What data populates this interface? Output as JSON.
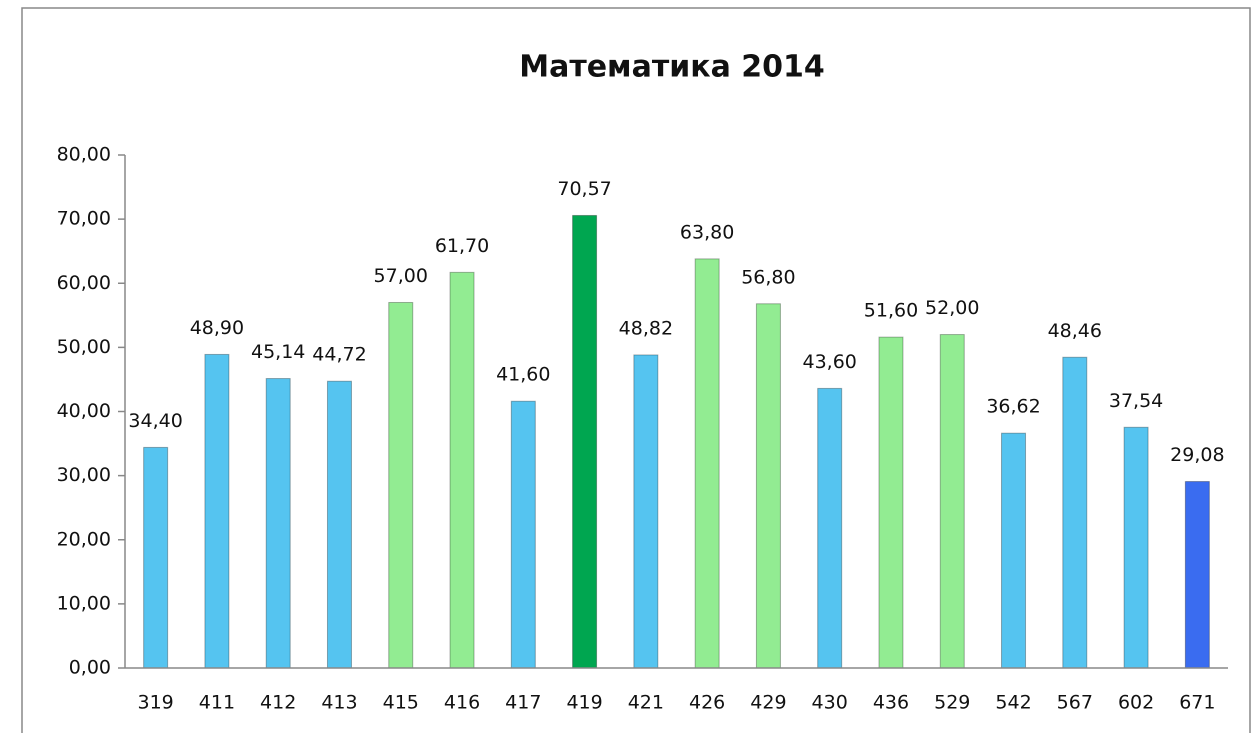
{
  "chart_data": {
    "type": "bar",
    "title": "Математика 2014",
    "categories": [
      "319",
      "411",
      "412",
      "413",
      "415",
      "416",
      "417",
      "419",
      "421",
      "426",
      "429",
      "430",
      "436",
      "529",
      "542",
      "567",
      "602",
      "671"
    ],
    "values": [
      34.4,
      48.9,
      45.14,
      44.72,
      57.0,
      61.7,
      41.6,
      70.57,
      48.82,
      63.8,
      56.8,
      43.6,
      51.6,
      52.0,
      36.62,
      48.46,
      37.54,
      29.08
    ],
    "value_labels": [
      "34,40",
      "48,90",
      "45,14",
      "44,72",
      "57,00",
      "61,70",
      "41,60",
      "70,57",
      "48,82",
      "63,80",
      "56,80",
      "43,60",
      "51,60",
      "52,00",
      "36,62",
      "48,46",
      "37,54",
      "29,08"
    ],
    "colors": [
      "#55c4f0",
      "#55c4f0",
      "#55c4f0",
      "#55c4f0",
      "#92ec92",
      "#92ec92",
      "#55c4f0",
      "#00a650",
      "#55c4f0",
      "#92ec92",
      "#92ec92",
      "#55c4f0",
      "#92ec92",
      "#92ec92",
      "#55c4f0",
      "#55c4f0",
      "#55c4f0",
      "#3a6cf0"
    ],
    "ylim": [
      0,
      80
    ],
    "yticks": [
      {
        "value": 0,
        "label": "0,00"
      },
      {
        "value": 10,
        "label": "10,00"
      },
      {
        "value": 20,
        "label": "20,00"
      },
      {
        "value": 30,
        "label": "30,00"
      },
      {
        "value": 40,
        "label": "40,00"
      },
      {
        "value": 50,
        "label": "50,00"
      },
      {
        "value": 60,
        "label": "60,00"
      },
      {
        "value": 70,
        "label": "70,00"
      },
      {
        "value": 80,
        "label": "80,00"
      }
    ],
    "grid": false
  }
}
